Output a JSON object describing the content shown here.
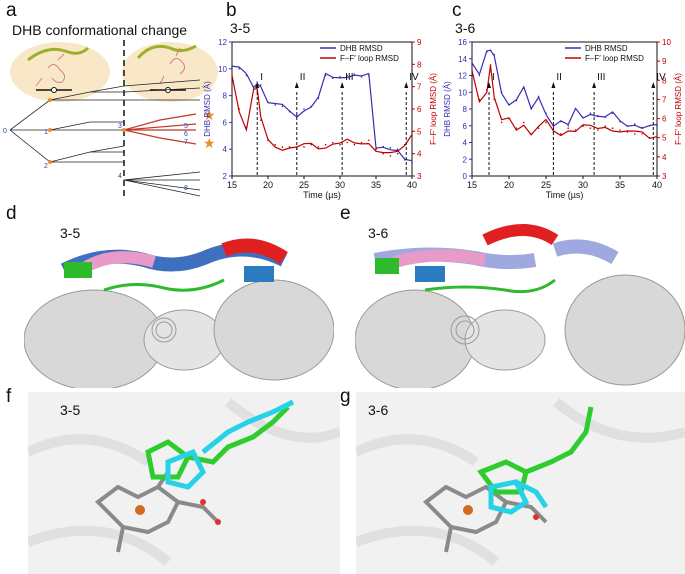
{
  "panels": {
    "a": {
      "label": "a",
      "title": "DHB conformational change",
      "tree_nodes": [
        "0",
        "1",
        "2",
        "3",
        "4",
        "5",
        "6",
        "7",
        "8"
      ]
    },
    "b": {
      "label": "b",
      "title": "3-5"
    },
    "c": {
      "label": "c",
      "title": "3-6"
    },
    "d": {
      "label": "d",
      "title": "3-5"
    },
    "e": {
      "label": "e",
      "title": "3-6"
    },
    "f": {
      "label": "f",
      "title": "3-5"
    },
    "g": {
      "label": "g",
      "title": "3-6"
    }
  },
  "chart_data": [
    {
      "type": "line",
      "panel": "b",
      "xlabel": "Time (µs)",
      "ylabel": "DHB RMSD (Å)",
      "ylabel_right": "F–F′ loop RMSD (Å)",
      "xlim": [
        15,
        40
      ],
      "ylim": [
        2,
        12
      ],
      "ylim_right": [
        3,
        9
      ],
      "xticks": [
        "15",
        "20",
        "25",
        "30",
        "35",
        "40"
      ],
      "yticks": [
        "2",
        "4",
        "6",
        "8",
        "10",
        "12"
      ],
      "yticks_right": [
        "3",
        "4",
        "5",
        "6",
        "7",
        "8",
        "9"
      ],
      "legend": "top-right",
      "series": [
        {
          "name": "DHB RMSD",
          "color": "#3a2db0",
          "axis": "left",
          "x": [
            15,
            16,
            17,
            18,
            18.5,
            19,
            20,
            21,
            22,
            23,
            24,
            25,
            26,
            27,
            28,
            29,
            30,
            31,
            32,
            33,
            34,
            35,
            36,
            37,
            38,
            39,
            40
          ],
          "y": [
            10.2,
            10.0,
            9.5,
            8.6,
            9.0,
            8.8,
            7.5,
            7.3,
            7.2,
            6.8,
            6.5,
            7.0,
            7.2,
            7.8,
            9.5,
            9.3,
            9.4,
            9.5,
            9.6,
            9.4,
            9.5,
            4.0,
            4.2,
            4.1,
            4.0,
            3.2,
            3.0
          ]
        },
        {
          "name": "F–F′ loop RMSD",
          "color": "#c00000",
          "axis": "right",
          "x": [
            15,
            16,
            17,
            18,
            18.5,
            19,
            20,
            21,
            22,
            23,
            24,
            25,
            26,
            27,
            28,
            29,
            30,
            31,
            32,
            33,
            34,
            35,
            36,
            37,
            38,
            39,
            40
          ],
          "y": [
            7.5,
            6.0,
            5.2,
            6.9,
            6.8,
            5.5,
            4.6,
            4.4,
            4.3,
            4.3,
            4.2,
            4.3,
            4.4,
            4.3,
            4.4,
            4.5,
            4.4,
            4.5,
            4.4,
            4.5,
            4.6,
            4.2,
            4.0,
            3.9,
            4.0,
            4.4,
            5.0
          ]
        }
      ],
      "annotations": [
        {
          "text": "I",
          "x": 18.5
        },
        {
          "text": "II",
          "x": 24
        },
        {
          "text": "III",
          "x": 30.3
        },
        {
          "text": "IV",
          "x": 39.2
        }
      ]
    },
    {
      "type": "line",
      "panel": "c",
      "xlabel": "Time (µs)",
      "ylabel": "DHB RMSD (Å)",
      "ylabel_right": "F–F′ loop RMSD (Å)",
      "xlim": [
        15,
        40
      ],
      "ylim": [
        0,
        16
      ],
      "ylim_right": [
        3,
        10
      ],
      "xticks": [
        "15",
        "20",
        "25",
        "30",
        "35",
        "40"
      ],
      "yticks": [
        "0",
        "2",
        "4",
        "6",
        "8",
        "10",
        "12",
        "14",
        "16"
      ],
      "yticks_right": [
        "3",
        "4",
        "5",
        "6",
        "7",
        "8",
        "9",
        "10"
      ],
      "legend": "top-right",
      "series": [
        {
          "name": "DHB RMSD",
          "color": "#3a2db0",
          "axis": "left",
          "x": [
            15,
            16,
            17,
            17.5,
            18,
            19,
            20,
            21,
            22,
            23,
            24,
            25,
            26,
            27,
            28,
            29,
            30,
            31,
            32,
            33,
            34,
            35,
            36,
            37,
            38,
            39,
            40
          ],
          "y": [
            13.5,
            12.0,
            14.8,
            15.0,
            14.5,
            10.0,
            8.5,
            9.0,
            10.5,
            8.0,
            9.5,
            7.5,
            6.0,
            6.5,
            6.0,
            8.0,
            7.0,
            7.5,
            7.2,
            7.0,
            7.5,
            6.5,
            6.0,
            6.2,
            5.8,
            6.0,
            6.0
          ]
        },
        {
          "name": "F–F′ loop RMSD",
          "color": "#c00000",
          "axis": "right",
          "x": [
            15,
            16,
            17,
            17.5,
            18,
            19,
            20,
            21,
            22,
            23,
            24,
            25,
            26,
            27,
            28,
            29,
            30,
            31,
            32,
            33,
            34,
            35,
            36,
            37,
            38,
            39,
            40
          ],
          "y": [
            8.5,
            7.0,
            7.5,
            8.8,
            7.0,
            5.8,
            6.0,
            5.5,
            5.8,
            5.2,
            5.5,
            5.8,
            5.3,
            5.2,
            5.5,
            5.4,
            5.6,
            5.5,
            5.4,
            5.6,
            5.5,
            5.4,
            5.3,
            5.2,
            5.2,
            5.0,
            5.2
          ]
        }
      ],
      "annotations": [
        {
          "text": "I",
          "x": 17.3
        },
        {
          "text": "II",
          "x": 26
        },
        {
          "text": "III",
          "x": 31.5
        },
        {
          "text": "IV",
          "x": 39.5
        }
      ]
    }
  ]
}
